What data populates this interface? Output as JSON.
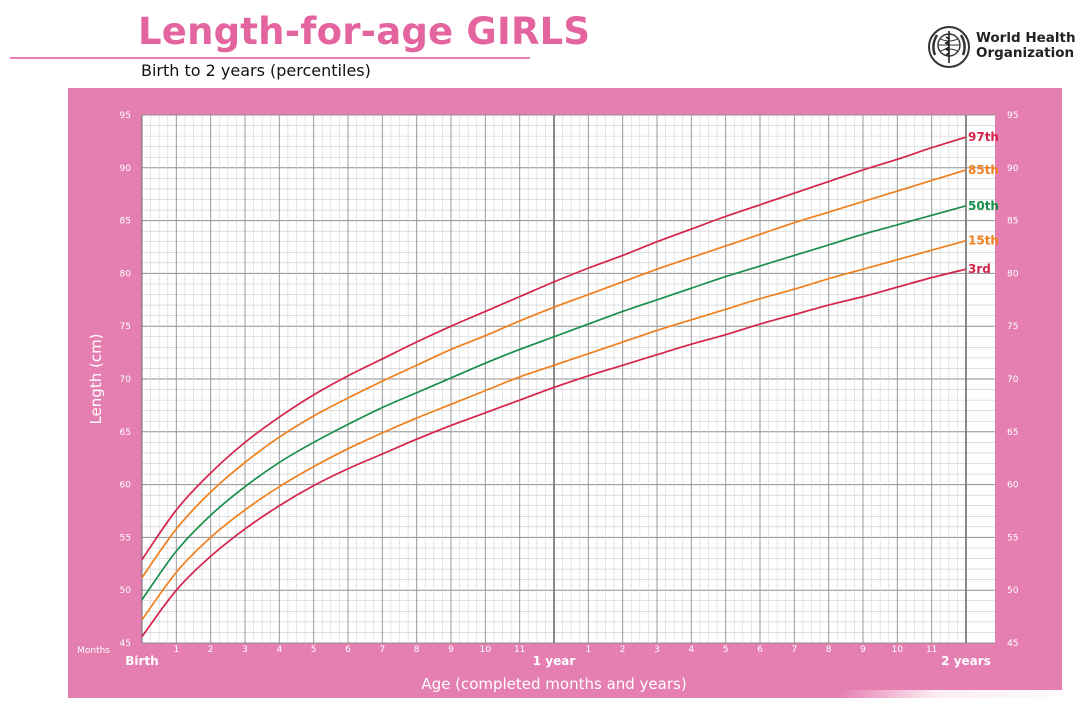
{
  "header": {
    "title": "Length-for-age GIRLS",
    "subtitle": "Birth to 2 years (percentiles)",
    "org_line1": "World Health",
    "org_line2": "Organization"
  },
  "chart_data": {
    "type": "line",
    "title": "Length-for-age GIRLS",
    "subtitle": "Birth to 2 years (percentiles)",
    "xlabel": "Age (completed months and years)",
    "ylabel": "Length (cm)",
    "x_unit_label": "Months",
    "xlim": [
      0,
      24
    ],
    "ylim": [
      45,
      95
    ],
    "x_ticks": [
      {
        "x": 0,
        "label": "Birth"
      },
      {
        "x": 1,
        "label": "1"
      },
      {
        "x": 2,
        "label": "2"
      },
      {
        "x": 3,
        "label": "3"
      },
      {
        "x": 4,
        "label": "4"
      },
      {
        "x": 5,
        "label": "5"
      },
      {
        "x": 6,
        "label": "6"
      },
      {
        "x": 7,
        "label": "7"
      },
      {
        "x": 8,
        "label": "8"
      },
      {
        "x": 9,
        "label": "9"
      },
      {
        "x": 10,
        "label": "10"
      },
      {
        "x": 11,
        "label": "11"
      },
      {
        "x": 12,
        "label": "1 year"
      },
      {
        "x": 13,
        "label": "1"
      },
      {
        "x": 14,
        "label": "2"
      },
      {
        "x": 15,
        "label": "3"
      },
      {
        "x": 16,
        "label": "4"
      },
      {
        "x": 17,
        "label": "5"
      },
      {
        "x": 18,
        "label": "6"
      },
      {
        "x": 19,
        "label": "7"
      },
      {
        "x": 20,
        "label": "8"
      },
      {
        "x": 21,
        "label": "9"
      },
      {
        "x": 22,
        "label": "10"
      },
      {
        "x": 23,
        "label": "11"
      },
      {
        "x": 24,
        "label": "2 years"
      }
    ],
    "y_ticks": [
      45,
      50,
      55,
      60,
      65,
      70,
      75,
      80,
      85,
      90,
      95
    ],
    "grid": true,
    "x": [
      0,
      1,
      2,
      3,
      4,
      5,
      6,
      7,
      8,
      9,
      10,
      11,
      12,
      13,
      14,
      15,
      16,
      17,
      18,
      19,
      20,
      21,
      22,
      23,
      24
    ],
    "series": [
      {
        "name": "97th",
        "color": "#d6234a",
        "values": [
          52.9,
          57.6,
          61.1,
          64.0,
          66.4,
          68.5,
          70.3,
          71.9,
          73.5,
          75.0,
          76.4,
          77.8,
          79.2,
          80.5,
          81.7,
          83.0,
          84.2,
          85.4,
          86.5,
          87.6,
          88.7,
          89.8,
          90.8,
          91.9,
          92.9
        ]
      },
      {
        "name": "85th",
        "color": "#f07f1e",
        "values": [
          51.2,
          55.8,
          59.3,
          62.1,
          64.5,
          66.5,
          68.2,
          69.8,
          71.3,
          72.8,
          74.1,
          75.5,
          76.8,
          78.0,
          79.2,
          80.4,
          81.5,
          82.6,
          83.7,
          84.8,
          85.8,
          86.8,
          87.8,
          88.8,
          89.8
        ]
      },
      {
        "name": "50th",
        "color": "#1a8f4b",
        "values": [
          49.1,
          53.7,
          57.1,
          59.8,
          62.1,
          64.0,
          65.7,
          67.3,
          68.7,
          70.1,
          71.5,
          72.8,
          74.0,
          75.2,
          76.4,
          77.5,
          78.6,
          79.7,
          80.7,
          81.7,
          82.7,
          83.7,
          84.6,
          85.5,
          86.4
        ]
      },
      {
        "name": "15th",
        "color": "#f07f1e",
        "values": [
          47.2,
          51.7,
          55.0,
          57.6,
          59.8,
          61.7,
          63.4,
          64.9,
          66.3,
          67.6,
          68.9,
          70.2,
          71.3,
          72.4,
          73.5,
          74.6,
          75.6,
          76.6,
          77.6,
          78.5,
          79.5,
          80.4,
          81.3,
          82.2,
          83.1
        ]
      },
      {
        "name": "3rd",
        "color": "#d6234a",
        "values": [
          45.6,
          50.0,
          53.2,
          55.8,
          58.0,
          59.9,
          61.5,
          62.9,
          64.3,
          65.6,
          66.8,
          68.0,
          69.2,
          70.3,
          71.3,
          72.3,
          73.3,
          74.2,
          75.2,
          76.1,
          77.0,
          77.8,
          78.7,
          79.6,
          80.4
        ]
      }
    ]
  }
}
